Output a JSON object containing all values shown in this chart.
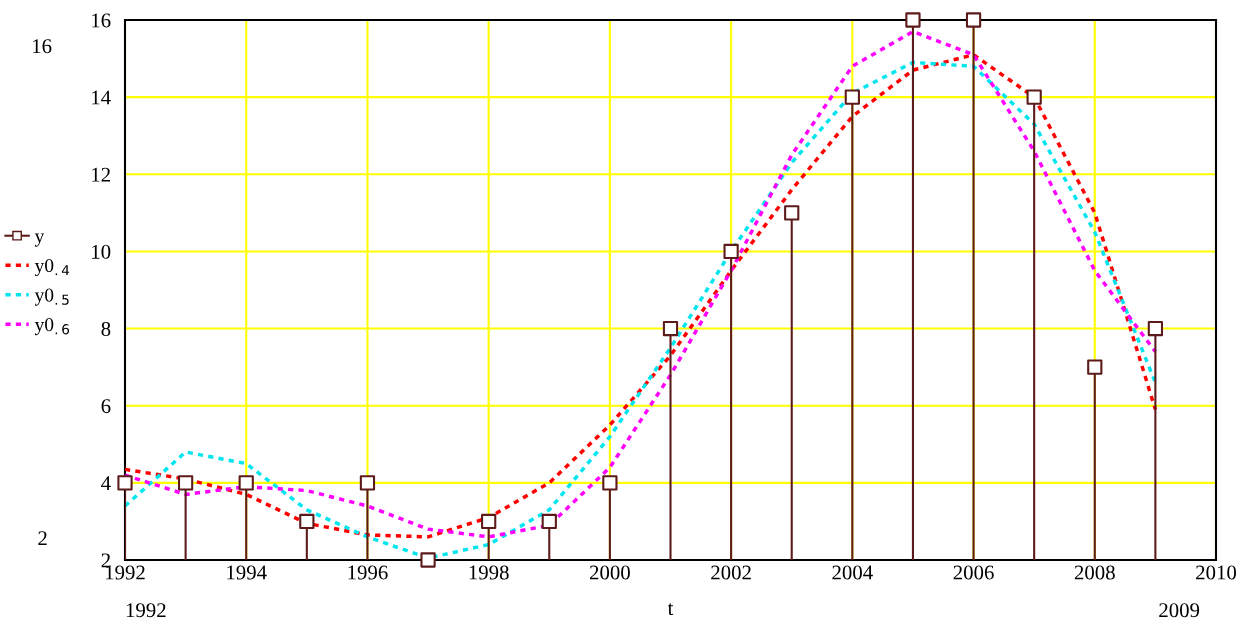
{
  "chart_data": {
    "type": "line",
    "xlabel": "t",
    "x": [
      1992,
      1993,
      1994,
      1995,
      1996,
      1997,
      1998,
      1999,
      2000,
      2001,
      2002,
      2003,
      2004,
      2005,
      2006,
      2007,
      2008,
      2009
    ],
    "xlim": [
      1992,
      2010
    ],
    "xticks": [
      1992,
      1994,
      1996,
      1998,
      2000,
      2002,
      2004,
      2006,
      2008,
      2010
    ],
    "ylim": [
      2,
      16
    ],
    "yticks": [
      2,
      4,
      6,
      8,
      10,
      12,
      14,
      16
    ],
    "grid": true,
    "legend": "left",
    "annotations": [
      "16",
      "2",
      "1992",
      "2009"
    ],
    "series": [
      {
        "name": "y",
        "type": "lollipop",
        "marker": "square",
        "color": "#5c1a1a",
        "values": [
          4,
          4,
          4,
          3,
          4,
          2,
          3,
          3,
          4,
          8,
          10,
          11,
          14,
          16,
          16,
          14,
          7,
          8
        ]
      },
      {
        "name": "y0$_{.4}$",
        "line_style": "dashed",
        "color": "#ff0000",
        "values": [
          4.35,
          4.1,
          3.7,
          2.95,
          2.65,
          2.6,
          3.1,
          4.0,
          5.5,
          7.3,
          9.5,
          11.6,
          13.5,
          14.7,
          15.1,
          14.0,
          11.0,
          5.9
        ]
      },
      {
        "name": "y0$_{.5}$",
        "line_style": "dashed",
        "color": "#00e5ee",
        "values": [
          3.4,
          4.8,
          4.5,
          3.3,
          2.6,
          2.05,
          2.4,
          3.3,
          5.2,
          7.5,
          10.0,
          12.3,
          14.1,
          14.9,
          14.8,
          13.3,
          10.5,
          6.6
        ]
      },
      {
        "name": "y0$_{.6}$",
        "line_style": "dashed",
        "color": "#ff00ff",
        "values": [
          4.2,
          3.7,
          3.9,
          3.8,
          3.4,
          2.8,
          2.6,
          2.9,
          4.4,
          6.8,
          9.5,
          12.5,
          14.8,
          15.7,
          15.1,
          12.6,
          9.5,
          7.4
        ]
      }
    ]
  }
}
